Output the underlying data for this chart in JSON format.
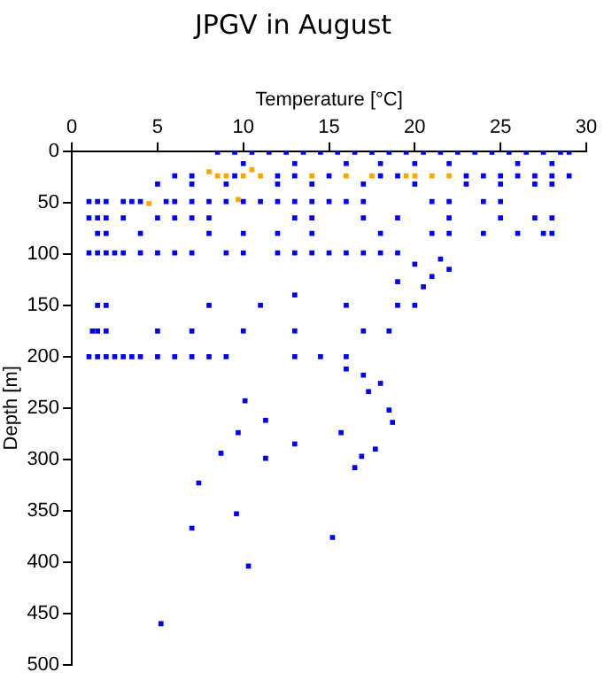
{
  "chart_data": {
    "type": "scatter",
    "title": "JPGV in August",
    "xlabel": "Temperature [°C]",
    "ylabel": "Depth [m]",
    "xlim": [
      0,
      30
    ],
    "xticks": [
      0,
      5,
      10,
      15,
      20,
      25,
      30
    ],
    "ylim": [
      500,
      0
    ],
    "yticks": [
      0,
      50,
      100,
      150,
      200,
      250,
      300,
      350,
      400,
      450,
      500
    ],
    "grid": false,
    "legend": false,
    "marker": "square",
    "series": [
      {
        "color": "#0000ff",
        "x": [
          8.5,
          9.5,
          10.5,
          11.5,
          12.5,
          13.5,
          14.5,
          15.5,
          16.5,
          17.5,
          18.5,
          19.5,
          20.5,
          21.5,
          22.5,
          23.5,
          24.5,
          25.5,
          26.5,
          27.5,
          28.5,
          29,
          10,
          13,
          16,
          18,
          20,
          22,
          26,
          28,
          6,
          7,
          9.5,
          12,
          13,
          15,
          18,
          19,
          23,
          24,
          25,
          26,
          27,
          28,
          29,
          5,
          7,
          9,
          12,
          14,
          17,
          20,
          23,
          25,
          27,
          28,
          1,
          1.5,
          2,
          3,
          3.5,
          4,
          5.5,
          6,
          7,
          8,
          9,
          10,
          11,
          12,
          13,
          14,
          15,
          16,
          17,
          21,
          22,
          24,
          25,
          1,
          1.5,
          2,
          3,
          5,
          6,
          7,
          8,
          13,
          14,
          17,
          19,
          22,
          25,
          27,
          28,
          1.5,
          2,
          4,
          8,
          10,
          12,
          14,
          18,
          21,
          22,
          24,
          26,
          27.5,
          28,
          1,
          1.5,
          2,
          2.5,
          3,
          4,
          5,
          6,
          7,
          9,
          10,
          12,
          13,
          14,
          15,
          16,
          17,
          18,
          19,
          20,
          22,
          21,
          19,
          20.5,
          13,
          21.5,
          1.5,
          2,
          8,
          11,
          16,
          19,
          20,
          1.2,
          1.5,
          2,
          5,
          7,
          10,
          13,
          17,
          18.5,
          1,
          1.5,
          2,
          2.5,
          3,
          3.5,
          4,
          5,
          6,
          7,
          8,
          9,
          13,
          14.5,
          16,
          16,
          17,
          17.3,
          18,
          18.5,
          18.7,
          10.1,
          11.3,
          9.7,
          13,
          15.7,
          16.9,
          17.7,
          16.5,
          8.7,
          11.3,
          7.4,
          9.6,
          7,
          15.2,
          10.3,
          5.2
        ],
        "values": [
          1,
          1,
          1,
          1,
          1,
          1,
          1,
          1,
          1,
          1,
          1,
          1,
          1,
          1,
          1,
          1,
          1,
          1,
          1,
          1,
          1,
          1,
          12,
          12,
          12,
          12,
          12,
          12,
          12,
          12,
          24,
          24,
          24,
          24,
          24,
          24,
          24,
          24,
          24,
          24,
          24,
          24,
          24,
          24,
          24,
          32,
          32,
          32,
          32,
          32,
          32,
          32,
          32,
          32,
          32,
          32,
          49,
          49,
          49,
          49,
          49,
          49,
          49,
          49,
          49,
          49,
          49,
          49,
          49,
          49,
          49,
          49,
          49,
          49,
          49,
          49,
          49,
          49,
          49,
          65,
          65,
          65,
          65,
          65,
          65,
          65,
          65,
          65,
          65,
          65,
          65,
          65,
          65,
          65,
          65,
          80,
          80,
          80,
          80,
          80,
          80,
          80,
          80,
          80,
          80,
          80,
          80,
          80,
          80,
          99,
          99,
          99,
          99,
          99,
          99,
          99,
          99,
          99,
          99,
          99,
          99,
          99,
          99,
          99,
          99,
          99,
          99,
          99,
          110,
          115,
          122,
          127,
          132,
          140,
          105,
          150,
          150,
          150,
          150,
          150,
          150,
          150,
          175,
          175,
          175,
          175,
          175,
          175,
          175,
          175,
          175,
          200,
          200,
          200,
          200,
          200,
          200,
          200,
          200,
          200,
          200,
          200,
          200,
          200,
          200,
          200,
          212,
          218,
          234,
          226,
          252,
          264,
          243,
          262,
          274,
          285,
          274,
          297,
          290,
          308,
          294,
          299,
          323,
          353,
          367,
          376,
          404,
          460
        ]
      },
      {
        "color": "#ffa500",
        "x": [
          8.5,
          9,
          10,
          11,
          14,
          16,
          17.5,
          19.5,
          20,
          21,
          22,
          4.5,
          9.7,
          8,
          10.5
        ],
        "values": [
          24,
          24,
          24,
          24,
          24,
          24,
          24,
          24,
          24,
          24,
          24,
          51,
          47,
          20,
          18
        ]
      }
    ]
  }
}
